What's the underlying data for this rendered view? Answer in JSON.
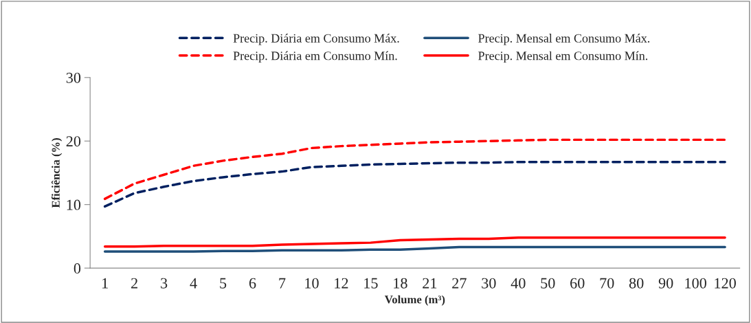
{
  "chart_data": {
    "type": "line",
    "xlabel": "Volume (m³)",
    "ylabel": "Eficiência (%)",
    "categories": [
      "1",
      "2",
      "3",
      "4",
      "5",
      "6",
      "7",
      "10",
      "12",
      "15",
      "18",
      "21",
      "27",
      "30",
      "40",
      "50",
      "60",
      "70",
      "80",
      "90",
      "100",
      "120"
    ],
    "ylim": [
      0,
      30
    ],
    "yticks": [
      0,
      10,
      20,
      30
    ],
    "grid": false,
    "legend": "top",
    "marker": "none",
    "series": [
      {
        "name": "Precip. Diária em Consumo Máx.",
        "color": "#002060",
        "line_style": "dashed",
        "values": [
          9.7,
          11.8,
          12.8,
          13.7,
          14.3,
          14.8,
          15.2,
          15.9,
          16.1,
          16.3,
          16.4,
          16.5,
          16.6,
          16.6,
          16.7,
          16.7,
          16.7,
          16.7,
          16.7,
          16.7,
          16.7,
          16.7
        ]
      },
      {
        "name": "Precip. Mensal em Consumo Máx.",
        "color": "#1f4e79",
        "line_style": "solid",
        "values": [
          2.6,
          2.6,
          2.6,
          2.6,
          2.7,
          2.7,
          2.8,
          2.8,
          2.8,
          2.9,
          2.9,
          3.1,
          3.3,
          3.3,
          3.3,
          3.3,
          3.3,
          3.3,
          3.3,
          3.3,
          3.3,
          3.3
        ]
      },
      {
        "name": "Precip. Diária em Consumo Mín.",
        "color": "#ff0000",
        "line_style": "dashed",
        "values": [
          10.9,
          13.3,
          14.7,
          16.1,
          16.9,
          17.5,
          18.0,
          18.9,
          19.2,
          19.4,
          19.6,
          19.8,
          19.9,
          20.0,
          20.1,
          20.2,
          20.2,
          20.2,
          20.2,
          20.2,
          20.2,
          20.2
        ]
      },
      {
        "name": "Precip. Mensal em Consumo Mín.",
        "color": "#ff0000",
        "line_style": "solid",
        "values": [
          3.4,
          3.4,
          3.5,
          3.5,
          3.5,
          3.5,
          3.7,
          3.8,
          3.9,
          4.0,
          4.4,
          4.5,
          4.6,
          4.6,
          4.8,
          4.8,
          4.8,
          4.8,
          4.8,
          4.8,
          4.8,
          4.8
        ]
      }
    ]
  }
}
